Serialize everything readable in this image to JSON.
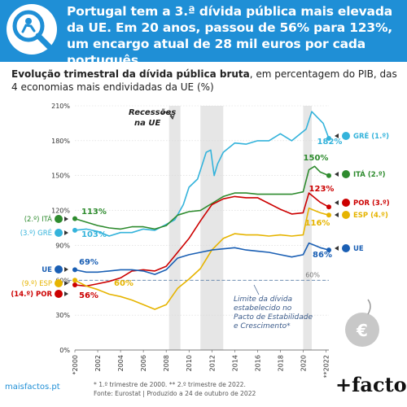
{
  "header": {
    "title": "Portugal tem a 3.ª dívida pública mais elevada da UE. Em 20 anos, passou de 56% para 123%, um encargo atual de 28 mil euros por cada português.",
    "subtitle_bold": "Evolução trimestral da dívida pública bruta",
    "subtitle_rest": ", em percentagem do PIB, das 4 economias mais endividadas da UE (%)"
  },
  "footer": {
    "notes": "* 1.º trimestre de 2000. ** 2.º trimestre de 2022.",
    "source": "Fonte: Eurostat | Produzido a 24 de outubro de 2022",
    "site": "maisfactos.pt",
    "brand": "+factos"
  },
  "colors": {
    "greece": "#34b3db",
    "italy": "#2e8b2e",
    "portugal": "#cc0000",
    "spain": "#e6b400",
    "eu": "#1a5fb4",
    "header": "#1f8fd6"
  },
  "chart_data": {
    "type": "line",
    "x_ticks": [
      "*2000",
      "2002",
      "2004",
      "2006",
      "2008",
      "2010",
      "2012",
      "2014",
      "2016",
      "2018",
      "2020",
      "**2022"
    ],
    "y_ticks": [
      "0%",
      "30%",
      "60%",
      "90%",
      "120%",
      "150%",
      "180%",
      "210%"
    ],
    "ylim": [
      0,
      210
    ],
    "xlim": [
      2000.0,
      2022.25
    ],
    "recessions": [
      [
        2008.25,
        2009.25
      ],
      [
        2011.0,
        2013.0
      ],
      [
        2020.0,
        2020.75
      ]
    ],
    "recession_label": "Recessões na UE",
    "threshold": {
      "value": 60,
      "label": "60%",
      "note": "Limite da dívida estabelecido no Pacto de Estabilidade e Crescimento*"
    },
    "series": [
      {
        "name": "GRÉ (1.º)",
        "start_label": "(3.º) GRÉ",
        "key": "greece",
        "start_value": "103%",
        "end_value": "182%",
        "points": [
          [
            2000,
            103
          ],
          [
            2001,
            104
          ],
          [
            2002,
            102
          ],
          [
            2003,
            98
          ],
          [
            2004,
            101
          ],
          [
            2005,
            101
          ],
          [
            2006,
            104
          ],
          [
            2007,
            103
          ],
          [
            2008,
            108
          ],
          [
            2008.75,
            112
          ],
          [
            2009.5,
            125
          ],
          [
            2010,
            140
          ],
          [
            2010.75,
            147
          ],
          [
            2011.5,
            170
          ],
          [
            2011.9,
            172
          ],
          [
            2012.2,
            150
          ],
          [
            2012.5,
            160
          ],
          [
            2013,
            170
          ],
          [
            2014,
            178
          ],
          [
            2015,
            177
          ],
          [
            2016,
            180
          ],
          [
            2017,
            180
          ],
          [
            2018,
            186
          ],
          [
            2019,
            180
          ],
          [
            2020.25,
            190
          ],
          [
            2020.75,
            205
          ],
          [
            2021.25,
            200
          ],
          [
            2021.75,
            195
          ],
          [
            2022.25,
            182
          ]
        ]
      },
      {
        "name": "ITÁ (2.º)",
        "start_label": "(2.º) ITÁ",
        "key": "italy",
        "start_value": "113%",
        "end_value": "150%",
        "points": [
          [
            2000,
            113
          ],
          [
            2001,
            110
          ],
          [
            2002,
            107
          ],
          [
            2003,
            105
          ],
          [
            2004,
            104
          ],
          [
            2005,
            106
          ],
          [
            2006,
            106
          ],
          [
            2007,
            104
          ],
          [
            2008,
            107
          ],
          [
            2009,
            116
          ],
          [
            2010,
            119
          ],
          [
            2011,
            120
          ],
          [
            2012,
            126
          ],
          [
            2013,
            132
          ],
          [
            2014,
            135
          ],
          [
            2015,
            135
          ],
          [
            2016,
            134
          ],
          [
            2017,
            134
          ],
          [
            2018,
            134
          ],
          [
            2019,
            134
          ],
          [
            2020,
            136
          ],
          [
            2020.5,
            155
          ],
          [
            2021,
            158
          ],
          [
            2021.5,
            153
          ],
          [
            2022.25,
            150
          ]
        ]
      },
      {
        "name": "POR (3.º)",
        "start_label": "(14.º) POR",
        "key": "portugal",
        "start_value": "56%",
        "end_value": "123%",
        "points": [
          [
            2000,
            56
          ],
          [
            2001,
            55
          ],
          [
            2002,
            57
          ],
          [
            2003,
            59
          ],
          [
            2004,
            62
          ],
          [
            2005,
            68
          ],
          [
            2006,
            69
          ],
          [
            2007,
            68
          ],
          [
            2008,
            72
          ],
          [
            2009,
            84
          ],
          [
            2010,
            96
          ],
          [
            2011,
            111
          ],
          [
            2012,
            125
          ],
          [
            2013,
            130
          ],
          [
            2014,
            132
          ],
          [
            2015,
            131
          ],
          [
            2016,
            131
          ],
          [
            2017,
            126
          ],
          [
            2018,
            121
          ],
          [
            2019,
            117
          ],
          [
            2020,
            118
          ],
          [
            2020.5,
            135
          ],
          [
            2021,
            131
          ],
          [
            2021.5,
            127
          ],
          [
            2022.25,
            123
          ]
        ]
      },
      {
        "name": "ESP (4.º)",
        "start_label": "(9.º) ESP",
        "key": "spain",
        "start_value": "60%",
        "end_value": "116%",
        "points": [
          [
            2000,
            60
          ],
          [
            2001,
            55
          ],
          [
            2002,
            52
          ],
          [
            2003,
            48
          ],
          [
            2004,
            46
          ],
          [
            2005,
            43
          ],
          [
            2006,
            39
          ],
          [
            2007,
            35
          ],
          [
            2008,
            39
          ],
          [
            2009,
            53
          ],
          [
            2010,
            61
          ],
          [
            2011,
            70
          ],
          [
            2012,
            86
          ],
          [
            2013,
            96
          ],
          [
            2014,
            100
          ],
          [
            2015,
            99
          ],
          [
            2016,
            99
          ],
          [
            2017,
            98
          ],
          [
            2018,
            99
          ],
          [
            2019,
            98
          ],
          [
            2020,
            99
          ],
          [
            2020.5,
            122
          ],
          [
            2021,
            120
          ],
          [
            2021.5,
            118
          ],
          [
            2022.25,
            116
          ]
        ]
      },
      {
        "name": "UE",
        "start_label": "UE",
        "key": "eu",
        "start_value": "69%",
        "end_value": "86%",
        "points": [
          [
            2000,
            69
          ],
          [
            2001,
            67
          ],
          [
            2002,
            67
          ],
          [
            2003,
            68
          ],
          [
            2004,
            69
          ],
          [
            2005,
            69
          ],
          [
            2006,
            68
          ],
          [
            2007,
            65
          ],
          [
            2008,
            69
          ],
          [
            2009,
            79
          ],
          [
            2010,
            82
          ],
          [
            2011,
            84
          ],
          [
            2012,
            86
          ],
          [
            2013,
            87
          ],
          [
            2014,
            88
          ],
          [
            2015,
            86
          ],
          [
            2016,
            85
          ],
          [
            2017,
            84
          ],
          [
            2018,
            82
          ],
          [
            2019,
            80
          ],
          [
            2020,
            82
          ],
          [
            2020.5,
            92
          ],
          [
            2021,
            90
          ],
          [
            2021.5,
            88
          ],
          [
            2022.25,
            86
          ]
        ]
      }
    ]
  }
}
